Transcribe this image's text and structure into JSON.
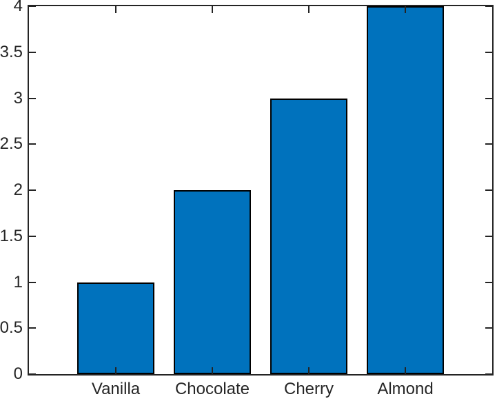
{
  "chart_data": {
    "type": "bar",
    "categories": [
      "Vanilla",
      "Chocolate",
      "Cherry",
      "Almond"
    ],
    "values": [
      1,
      2,
      3,
      4
    ],
    "ylim": [
      0,
      4
    ],
    "xlim": [
      0.1,
      4.9
    ],
    "yticks": [
      0,
      0.5,
      1,
      1.5,
      2,
      2.5,
      3,
      3.5,
      4
    ],
    "ytick_labels": [
      "0",
      "0.5",
      "1",
      "1.5",
      "2",
      "2.5",
      "3",
      "3.5",
      "4"
    ],
    "bar_width_ratio": 0.8,
    "grid": false,
    "box": true,
    "tick_direction": "in",
    "colors": {
      "bar_fill": "#0072BD",
      "bar_edge": "#000000",
      "axis": "#242424",
      "tick_label": "#262626",
      "background": "#FFFFFF"
    }
  }
}
